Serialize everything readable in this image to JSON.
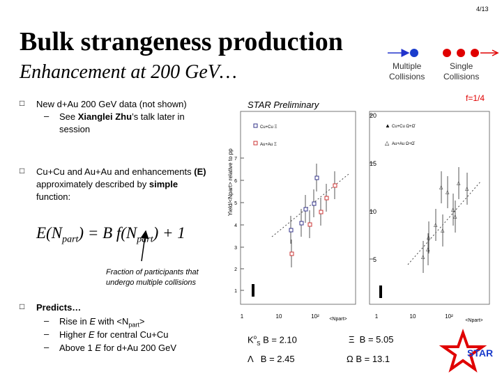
{
  "header": {
    "page": "4/13",
    "title": "Bulk strangeness production",
    "subtitle": "Enhancement at 200 GeV…"
  },
  "legend": {
    "multiple": [
      "Multiple",
      "Collisions"
    ],
    "single": [
      "Single",
      "Collisions"
    ],
    "fraction": "f=1/4"
  },
  "plot": {
    "preliminary": "STAR Preliminary",
    "y_label": "Yield/<Npart> relative to pp",
    "left_legend": [
      "Cu+Cu Ξ",
      "Au+Au Ξ"
    ],
    "right_legend": [
      "Cu+Cu Ω+Ω̄",
      "Au+Au Ω+Ω̄"
    ],
    "left_yticks": [
      "1",
      "2",
      "3",
      "4",
      "5",
      "6",
      "7"
    ],
    "right_yticks": [
      "5",
      "10",
      "15",
      "20"
    ],
    "xticks": [
      "1",
      "10",
      "10²"
    ],
    "x_label": "<Npart>"
  },
  "bullets": [
    {
      "text": [
        "New d+Au 200 GeV data (not shown)"
      ],
      "sub": [
        [
          "See ",
          "Xianglei Zhu",
          "’s talk later in session"
        ]
      ]
    },
    {
      "text": [
        "Cu+Cu and Au+Au and enhancements ",
        "(E)",
        " approximately described by ",
        "simple",
        " function:"
      ],
      "sub": []
    },
    {
      "text": [
        "Predicts…"
      ],
      "sub": [
        [
          "Rise in ",
          "E",
          " with <N",
          "part",
          ">"
        ],
        [
          "Higher ",
          "E",
          " for central Cu+Cu"
        ],
        [
          "Above 1 ",
          "E",
          " for d+Au 200 GeV"
        ]
      ]
    }
  ],
  "formula": [
    "E(N",
    "part",
    ") = B f(N",
    "part",
    ") + 1"
  ],
  "annotation": [
    "Fraction of participants that",
    "undergo multiple collisions"
  ],
  "species": [
    [
      "K",
      "o",
      "S",
      " B = 2.10"
    ],
    [
      "Ξ",
      "  B = 5.05"
    ],
    [
      "Λ",
      "   B = 2.45"
    ],
    [
      "Ω",
      " B = 13.1"
    ]
  ],
  "logo": "STAR"
}
